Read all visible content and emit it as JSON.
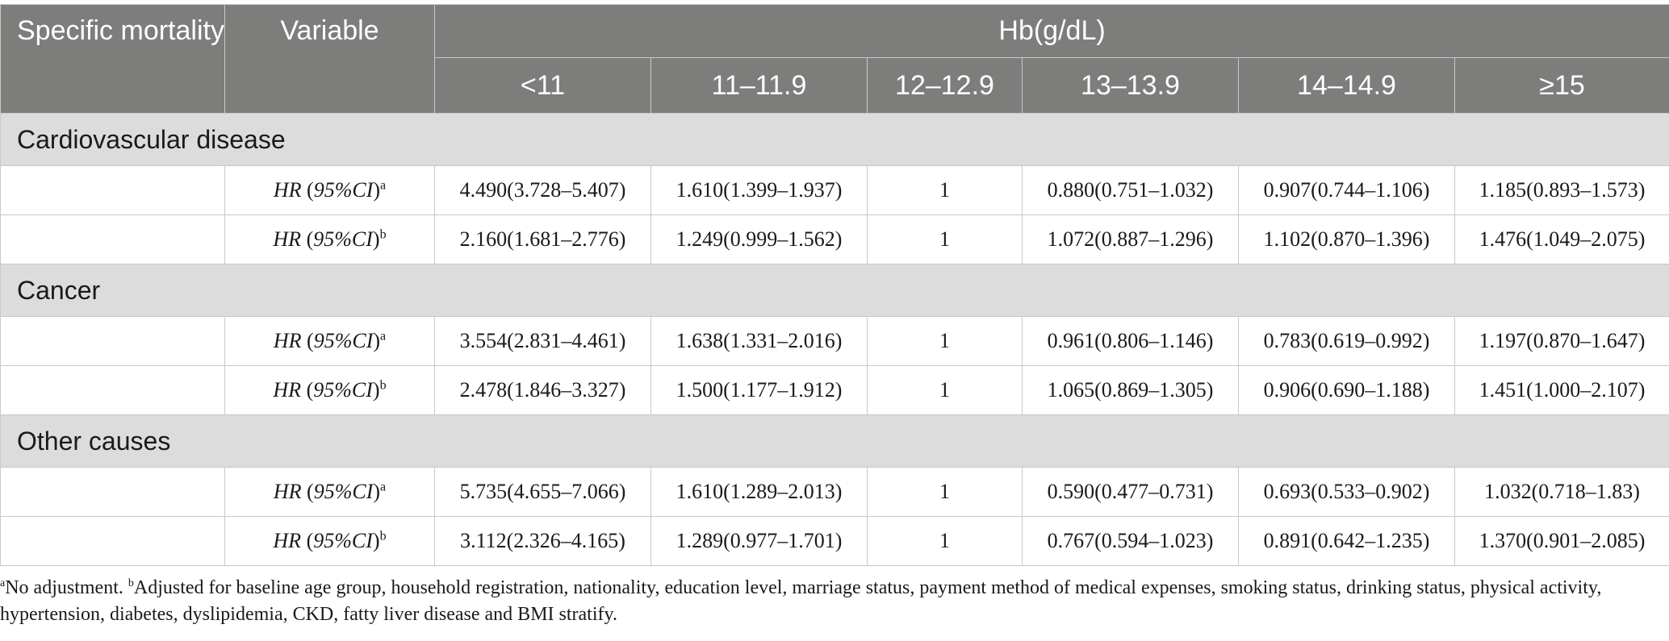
{
  "header": {
    "specific_mortality": "Specific mortality",
    "variable": "Variable",
    "hb": "Hb(g/dL)",
    "hb_groups": [
      "<11",
      "11–11.9",
      "12–12.9",
      "13–13.9",
      "14–14.9",
      "≥15"
    ]
  },
  "sections": [
    {
      "title": "Cardiovascular disease",
      "rows": [
        {
          "var_main": "HR",
          "var_ci": "95%CI",
          "var_sup": "a",
          "values": [
            "4.490(3.728–5.407)",
            "1.610(1.399–1.937)",
            "1",
            "0.880(0.751–1.032)",
            "0.907(0.744–1.106)",
            "1.185(0.893–1.573)"
          ]
        },
        {
          "var_main": "HR",
          "var_ci": "95%CI",
          "var_sup": "b",
          "values": [
            "2.160(1.681–2.776)",
            "1.249(0.999–1.562)",
            "1",
            "1.072(0.887–1.296)",
            "1.102(0.870–1.396)",
            "1.476(1.049–2.075)"
          ]
        }
      ]
    },
    {
      "title": "Cancer",
      "rows": [
        {
          "var_main": "HR",
          "var_ci": "95%CI",
          "var_sup": "a",
          "values": [
            "3.554(2.831–4.461)",
            "1.638(1.331–2.016)",
            "1",
            "0.961(0.806–1.146)",
            "0.783(0.619–0.992)",
            "1.197(0.870–1.647)"
          ]
        },
        {
          "var_main": "HR",
          "var_ci": "95%CI",
          "var_sup": "b",
          "values": [
            "2.478(1.846–3.327)",
            "1.500(1.177–1.912)",
            "1",
            "1.065(0.869–1.305)",
            "0.906(0.690–1.188)",
            "1.451(1.000–2.107)"
          ]
        }
      ]
    },
    {
      "title": "Other causes",
      "rows": [
        {
          "var_main": "HR",
          "var_ci": "95%CI",
          "var_sup": "a",
          "values": [
            "5.735(4.655–7.066)",
            "1.610(1.289–2.013)",
            "1",
            "0.590(0.477–0.731)",
            "0.693(0.533–0.902)",
            "1.032(0.718–1.83)"
          ]
        },
        {
          "var_main": "HR",
          "var_ci": "95%CI",
          "var_sup": "b",
          "values": [
            "3.112(2.326–4.165)",
            "1.289(0.977–1.701)",
            "1",
            "0.767(0.594–1.023)",
            "0.891(0.642–1.235)",
            "1.370(0.901–2.085)"
          ]
        }
      ]
    }
  ],
  "footnote": {
    "a_mark": "a",
    "a_text": "No adjustment. ",
    "b_mark": "b",
    "b_text": "Adjusted for baseline age group, household registration, nationality, education level, marriage status, payment method of medical expenses, smoking status, drinking status, physical activity, hypertension, diabetes, dyslipidemia, CKD, fatty liver disease and BMI stratify."
  }
}
